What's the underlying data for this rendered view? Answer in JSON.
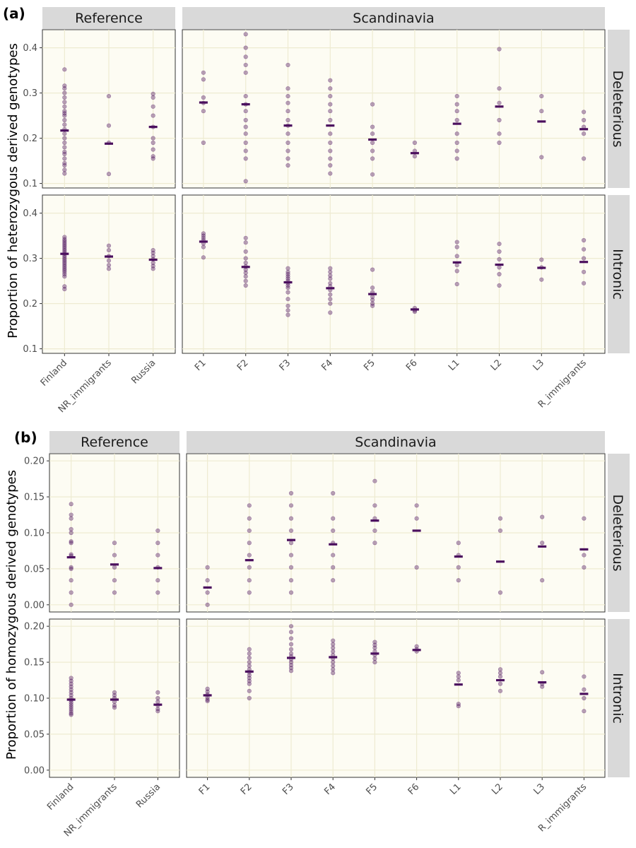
{
  "colors": {
    "point": "#4b0f5e",
    "mean": "#4b0f5e"
  },
  "chart_data": [
    {
      "id": "a",
      "tag": "(a)",
      "type": "scatter",
      "ylabel": "Proportion of heterozygous derived genotypes",
      "groups": [
        {
          "name": "Reference",
          "categories": [
            "Finland",
            "NR_immigrants",
            "Russia"
          ]
        },
        {
          "name": "Scandinavia",
          "categories": [
            "F1",
            "F2",
            "F3",
            "F4",
            "F5",
            "F6",
            "L1",
            "L2",
            "L3",
            "R_immigrants"
          ]
        }
      ],
      "rows": [
        {
          "name": "Deleterious",
          "ylim": [
            0.09,
            0.44
          ],
          "yticks": [
            0.1,
            0.2,
            0.3,
            0.4
          ],
          "ytick_labels": [
            "0.1",
            "0.2",
            "0.3",
            "0.4"
          ],
          "series": {
            "Finland": {
              "mean": 0.217,
              "points": [
                0.352,
                0.316,
                0.31,
                0.3,
                0.29,
                0.28,
                0.27,
                0.26,
                0.255,
                0.25,
                0.24,
                0.23,
                0.22,
                0.21,
                0.2,
                0.19,
                0.18,
                0.17,
                0.165,
                0.155,
                0.145,
                0.14,
                0.13,
                0.122
              ]
            },
            "NR_immigrants": {
              "mean": 0.188,
              "points": [
                0.293,
                0.228,
                0.19,
                0.121
              ]
            },
            "Russia": {
              "mean": 0.225,
              "points": [
                0.298,
                0.29,
                0.27,
                0.25,
                0.225,
                0.2,
                0.19,
                0.175,
                0.16,
                0.155
              ]
            },
            "F1": {
              "mean": 0.279,
              "points": [
                0.345,
                0.33,
                0.29,
                0.278,
                0.26,
                0.19
              ]
            },
            "F2": {
              "mean": 0.275,
              "points": [
                0.43,
                0.4,
                0.38,
                0.362,
                0.345,
                0.293,
                0.275,
                0.26,
                0.24,
                0.225,
                0.21,
                0.19,
                0.172,
                0.155,
                0.105
              ]
            },
            "F3": {
              "mean": 0.228,
              "points": [
                0.362,
                0.31,
                0.293,
                0.278,
                0.26,
                0.24,
                0.228,
                0.21,
                0.19,
                0.172,
                0.155,
                0.14
              ]
            },
            "F4": {
              "mean": 0.228,
              "points": [
                0.328,
                0.31,
                0.293,
                0.275,
                0.26,
                0.24,
                0.21,
                0.19,
                0.172,
                0.155,
                0.14,
                0.122
              ]
            },
            "F5": {
              "mean": 0.197,
              "points": [
                0.275,
                0.225,
                0.21,
                0.19,
                0.172,
                0.155,
                0.12
              ]
            },
            "F6": {
              "mean": 0.167,
              "points": [
                0.19,
                0.172,
                0.16
              ]
            },
            "L1": {
              "mean": 0.232,
              "points": [
                0.293,
                0.275,
                0.26,
                0.24,
                0.21,
                0.19,
                0.172,
                0.155
              ]
            },
            "L2": {
              "mean": 0.27,
              "points": [
                0.397,
                0.31,
                0.278,
                0.24,
                0.21,
                0.19
              ]
            },
            "L3": {
              "mean": 0.237,
              "points": [
                0.293,
                0.26,
                0.158
              ]
            },
            "R_immigrants": {
              "mean": 0.22,
              "points": [
                0.258,
                0.24,
                0.225,
                0.21,
                0.155
              ]
            }
          }
        },
        {
          "name": "Intronic",
          "ylim": [
            0.09,
            0.44
          ],
          "yticks": [
            0.1,
            0.2,
            0.3,
            0.4
          ],
          "ytick_labels": [
            "0.1",
            "0.2",
            "0.3",
            "0.4"
          ],
          "series": {
            "Finland": {
              "mean": 0.31,
              "points": [
                0.347,
                0.342,
                0.338,
                0.334,
                0.33,
                0.326,
                0.322,
                0.318,
                0.314,
                0.31,
                0.306,
                0.302,
                0.298,
                0.294,
                0.29,
                0.286,
                0.282,
                0.278,
                0.274,
                0.27,
                0.265,
                0.26,
                0.238,
                0.232
              ]
            },
            "NR_immigrants": {
              "mean": 0.304,
              "points": [
                0.328,
                0.318,
                0.305,
                0.295,
                0.285,
                0.277
              ]
            },
            "Russia": {
              "mean": 0.297,
              "points": [
                0.318,
                0.312,
                0.305,
                0.298,
                0.29,
                0.283,
                0.277
              ]
            },
            "F1": {
              "mean": 0.337,
              "points": [
                0.355,
                0.35,
                0.345,
                0.34,
                0.333,
                0.325,
                0.302
              ]
            },
            "F2": {
              "mean": 0.281,
              "points": [
                0.345,
                0.335,
                0.315,
                0.3,
                0.29,
                0.282,
                0.275,
                0.268,
                0.26,
                0.25,
                0.24
              ]
            },
            "F3": {
              "mean": 0.247,
              "points": [
                0.278,
                0.27,
                0.265,
                0.26,
                0.255,
                0.25,
                0.245,
                0.24,
                0.235,
                0.225,
                0.21,
                0.195,
                0.185,
                0.175
              ]
            },
            "F4": {
              "mean": 0.234,
              "points": [
                0.278,
                0.27,
                0.262,
                0.255,
                0.245,
                0.238,
                0.23,
                0.22,
                0.21,
                0.2,
                0.18
              ]
            },
            "F5": {
              "mean": 0.221,
              "points": [
                0.275,
                0.235,
                0.225,
                0.215,
                0.208,
                0.2,
                0.195
              ]
            },
            "F6": {
              "mean": 0.187,
              "points": [
                0.19,
                0.185,
                0.182
              ]
            },
            "L1": {
              "mean": 0.291,
              "points": [
                0.336,
                0.325,
                0.305,
                0.285,
                0.272,
                0.243
              ]
            },
            "L2": {
              "mean": 0.286,
              "points": [
                0.332,
                0.315,
                0.298,
                0.28,
                0.265,
                0.24
              ]
            },
            "L3": {
              "mean": 0.279,
              "points": [
                0.297,
                0.28,
                0.253
              ]
            },
            "R_immigrants": {
              "mean": 0.292,
              "points": [
                0.34,
                0.32,
                0.3,
                0.27,
                0.245
              ]
            }
          }
        }
      ]
    },
    {
      "id": "b",
      "tag": "(b)",
      "type": "scatter",
      "ylabel": "Proportion of homozygous derived genotypes",
      "groups": [
        {
          "name": "Reference",
          "categories": [
            "Finland",
            "NR_immigrants",
            "Russia"
          ]
        },
        {
          "name": "Scandinavia",
          "categories": [
            "F1",
            "F2",
            "F3",
            "F4",
            "F5",
            "F6",
            "L1",
            "L2",
            "L3",
            "R_immigrants"
          ]
        }
      ],
      "rows": [
        {
          "name": "Deleterious",
          "ylim": [
            -0.01,
            0.21
          ],
          "yticks": [
            0.0,
            0.05,
            0.1,
            0.15,
            0.2
          ],
          "ytick_labels": [
            "0.00",
            "0.05",
            "0.10",
            "0.15",
            "0.20"
          ],
          "series": {
            "Finland": {
              "mean": 0.066,
              "points": [
                0.14,
                0.125,
                0.12,
                0.105,
                0.1,
                0.088,
                0.086,
                0.07,
                0.068,
                0.052,
                0.05,
                0.034,
                0.017,
                0.0
              ]
            },
            "NR_immigrants": {
              "mean": 0.056,
              "points": [
                0.086,
                0.069,
                0.052,
                0.034,
                0.017
              ]
            },
            "Russia": {
              "mean": 0.051,
              "points": [
                0.103,
                0.086,
                0.069,
                0.052,
                0.034,
                0.017
              ]
            },
            "F1": {
              "mean": 0.024,
              "points": [
                0.052,
                0.034,
                0.017,
                0.0
              ]
            },
            "F2": {
              "mean": 0.062,
              "points": [
                0.138,
                0.12,
                0.103,
                0.086,
                0.069,
                0.052,
                0.034,
                0.017
              ]
            },
            "F3": {
              "mean": 0.09,
              "points": [
                0.155,
                0.138,
                0.12,
                0.103,
                0.086,
                0.069,
                0.052,
                0.034,
                0.017
              ]
            },
            "F4": {
              "mean": 0.084,
              "points": [
                0.155,
                0.12,
                0.103,
                0.086,
                0.069,
                0.052,
                0.034
              ]
            },
            "F5": {
              "mean": 0.117,
              "points": [
                0.172,
                0.138,
                0.12,
                0.103,
                0.086
              ]
            },
            "F6": {
              "mean": 0.103,
              "points": [
                0.138,
                0.12,
                0.052
              ]
            },
            "L1": {
              "mean": 0.067,
              "points": [
                0.086,
                0.069,
                0.052,
                0.034
              ]
            },
            "L2": {
              "mean": 0.06,
              "points": [
                0.12,
                0.103,
                0.017
              ]
            },
            "L3": {
              "mean": 0.081,
              "points": [
                0.122,
                0.086,
                0.034
              ]
            },
            "R_immigrants": {
              "mean": 0.077,
              "points": [
                0.12,
                0.069,
                0.052
              ]
            }
          }
        },
        {
          "name": "Intronic",
          "ylim": [
            -0.01,
            0.21
          ],
          "yticks": [
            0.0,
            0.05,
            0.1,
            0.15,
            0.2
          ],
          "ytick_labels": [
            "0.00",
            "0.05",
            "0.10",
            "0.15",
            "0.20"
          ],
          "series": {
            "Finland": {
              "mean": 0.098,
              "points": [
                0.128,
                0.124,
                0.12,
                0.116,
                0.112,
                0.108,
                0.104,
                0.1,
                0.097,
                0.094,
                0.091,
                0.088,
                0.085,
                0.082,
                0.079,
                0.077
              ]
            },
            "NR_immigrants": {
              "mean": 0.098,
              "points": [
                0.108,
                0.104,
                0.1,
                0.095,
                0.09,
                0.087
              ]
            },
            "Russia": {
              "mean": 0.091,
              "points": [
                0.108,
                0.1,
                0.095,
                0.09,
                0.085,
                0.082
              ]
            },
            "F1": {
              "mean": 0.104,
              "points": [
                0.113,
                0.109,
                0.105,
                0.101,
                0.098,
                0.096
              ]
            },
            "F2": {
              "mean": 0.137,
              "points": [
                0.168,
                0.162,
                0.156,
                0.15,
                0.145,
                0.14,
                0.136,
                0.132,
                0.128,
                0.124,
                0.12,
                0.11,
                0.1
              ]
            },
            "F3": {
              "mean": 0.156,
              "points": [
                0.2,
                0.192,
                0.183,
                0.175,
                0.168,
                0.162,
                0.158,
                0.154,
                0.15,
                0.146,
                0.142,
                0.138
              ]
            },
            "F4": {
              "mean": 0.157,
              "points": [
                0.18,
                0.175,
                0.17,
                0.165,
                0.16,
                0.155,
                0.15,
                0.145,
                0.14,
                0.135
              ]
            },
            "F5": {
              "mean": 0.162,
              "points": [
                0.178,
                0.174,
                0.17,
                0.165,
                0.16,
                0.155,
                0.15
              ]
            },
            "F6": {
              "mean": 0.167,
              "points": [
                0.172,
                0.168,
                0.165
              ]
            },
            "L1": {
              "mean": 0.119,
              "points": [
                0.135,
                0.13,
                0.125,
                0.092,
                0.089
              ]
            },
            "L2": {
              "mean": 0.125,
              "points": [
                0.14,
                0.135,
                0.13,
                0.12,
                0.11
              ]
            },
            "L3": {
              "mean": 0.122,
              "points": [
                0.136,
                0.12,
                0.116
              ]
            },
            "R_immigrants": {
              "mean": 0.106,
              "points": [
                0.13,
                0.112,
                0.1,
                0.082
              ]
            }
          }
        }
      ]
    }
  ]
}
